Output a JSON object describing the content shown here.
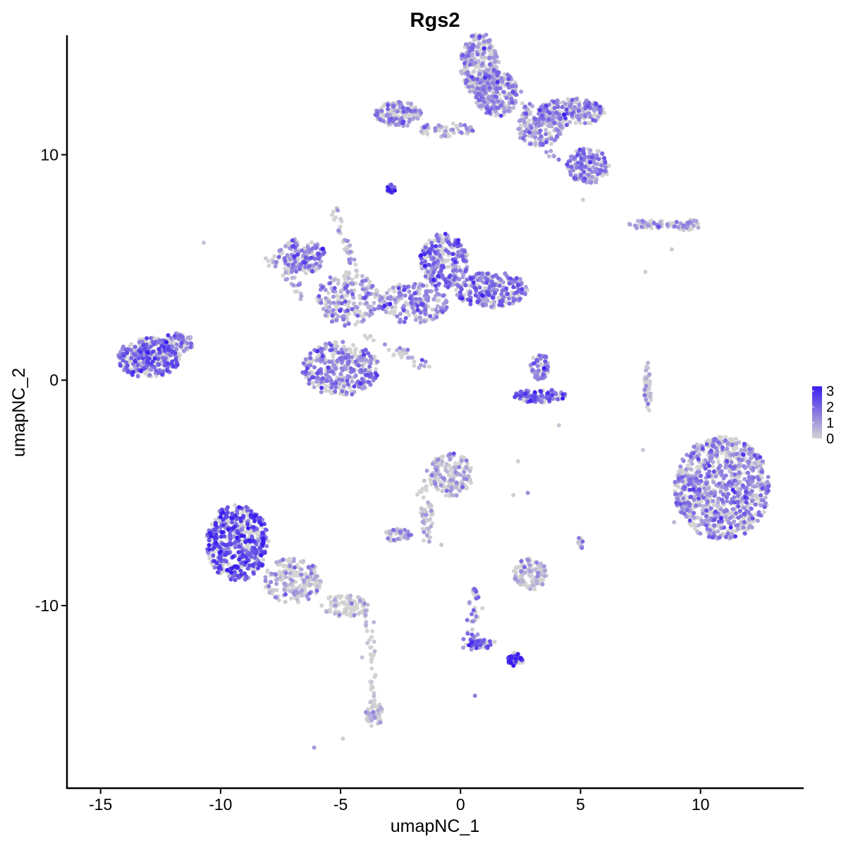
{
  "chart_data": {
    "type": "scatter",
    "title": "Rgs2",
    "xlabel": "umapNC_1",
    "ylabel": "umapNC_2",
    "xlim": [
      -16.4,
      14.3
    ],
    "ylim": [
      -18.1,
      15.3
    ],
    "x_ticks": [
      -15,
      -10,
      -5,
      0,
      5,
      10
    ],
    "x_tick_labels": [
      "-15",
      "-10",
      "-5",
      "0",
      "5",
      "10"
    ],
    "y_ticks": [
      -10,
      0,
      10
    ],
    "y_tick_labels": [
      "-10",
      "0",
      "10"
    ],
    "grid": false,
    "legend": {
      "placement": "right",
      "type": "colorbar",
      "breaks": [
        3,
        2,
        1,
        0
      ],
      "labels": [
        "3",
        "2",
        "1",
        "0"
      ],
      "low_color": "#d3d3d3",
      "high_color": "#3a1cf0",
      "range": [
        0,
        3.3
      ]
    },
    "series": [
      {
        "clusters": [
          {
            "cx": 0.8,
            "cy": 14.0,
            "rx": 0.8,
            "ry": 1.4,
            "n": 280,
            "mean": 0.9
          },
          {
            "cx": 1.5,
            "cy": 12.7,
            "rx": 0.9,
            "ry": 1.0,
            "n": 260,
            "mean": 1.0
          },
          {
            "cx": 4.6,
            "cy": 11.9,
            "rx": 1.4,
            "ry": 0.6,
            "n": 220,
            "mean": 1.2
          },
          {
            "cx": 5.3,
            "cy": 9.5,
            "rx": 0.9,
            "ry": 0.8,
            "n": 170,
            "mean": 1.3
          },
          {
            "cx": 3.3,
            "cy": 11.2,
            "rx": 1.0,
            "ry": 0.8,
            "n": 130,
            "mean": 0.9
          },
          {
            "cx": -2.6,
            "cy": 11.8,
            "rx": 1.0,
            "ry": 0.55,
            "n": 140,
            "mean": 1.1
          },
          {
            "cx": -0.6,
            "cy": 11.1,
            "rx": 1.2,
            "ry": 0.3,
            "n": 60,
            "mean": 0.7
          },
          {
            "cx": -2.9,
            "cy": 8.5,
            "rx": 0.2,
            "ry": 0.2,
            "n": 25,
            "mean": 2.6
          },
          {
            "cx": -6.6,
            "cy": 5.5,
            "rx": 1.0,
            "ry": 0.8,
            "n": 160,
            "mean": 1.5
          },
          {
            "cx": -4.7,
            "cy": 3.6,
            "rx": 1.3,
            "ry": 1.2,
            "n": 200,
            "mean": 1.0
          },
          {
            "cx": -0.7,
            "cy": 5.3,
            "rx": 1.0,
            "ry": 1.2,
            "n": 250,
            "mean": 1.6
          },
          {
            "cx": 1.3,
            "cy": 4.0,
            "rx": 1.5,
            "ry": 0.8,
            "n": 260,
            "mean": 1.6
          },
          {
            "cx": -2.0,
            "cy": 3.4,
            "rx": 1.5,
            "ry": 0.9,
            "n": 200,
            "mean": 1.2
          },
          {
            "cx": -5.0,
            "cy": 0.5,
            "rx": 1.6,
            "ry": 1.2,
            "n": 340,
            "mean": 1.4
          },
          {
            "cx": -13.0,
            "cy": 1.0,
            "rx": 1.3,
            "ry": 0.9,
            "n": 320,
            "mean": 1.7
          },
          {
            "cx": -11.8,
            "cy": 1.6,
            "rx": 0.7,
            "ry": 0.5,
            "n": 70,
            "mean": 1.2
          },
          {
            "cx": 3.3,
            "cy": 0.6,
            "rx": 0.4,
            "ry": 0.6,
            "n": 70,
            "mean": 1.6
          },
          {
            "cx": 3.3,
            "cy": -0.7,
            "rx": 1.1,
            "ry": 0.3,
            "n": 110,
            "mean": 1.8
          },
          {
            "cx": 7.9,
            "cy": 6.9,
            "rx": 0.9,
            "ry": 0.2,
            "n": 50,
            "mean": 0.6
          },
          {
            "cx": 9.4,
            "cy": 6.9,
            "rx": 0.6,
            "ry": 0.25,
            "n": 40,
            "mean": 1.0
          },
          {
            "cx": 7.8,
            "cy": -0.4,
            "rx": 0.15,
            "ry": 1.2,
            "n": 40,
            "mean": 0.3
          },
          {
            "cx": 10.9,
            "cy": -4.8,
            "rx": 2.0,
            "ry": 2.3,
            "n": 900,
            "mean": 1.1
          },
          {
            "cx": -0.4,
            "cy": -4.2,
            "rx": 0.9,
            "ry": 1.0,
            "n": 150,
            "mean": 0.5
          },
          {
            "cx": -1.4,
            "cy": -6.3,
            "rx": 0.3,
            "ry": 1.0,
            "n": 40,
            "mean": 0.4
          },
          {
            "cx": -2.6,
            "cy": -6.9,
            "rx": 0.6,
            "ry": 0.3,
            "n": 50,
            "mean": 0.5
          },
          {
            "cx": -9.3,
            "cy": -7.2,
            "rx": 1.3,
            "ry": 1.7,
            "n": 520,
            "mean": 2.2
          },
          {
            "cx": -7.0,
            "cy": -8.9,
            "rx": 1.2,
            "ry": 1.0,
            "n": 200,
            "mean": 0.4
          },
          {
            "cx": -4.8,
            "cy": -10.0,
            "rx": 1.0,
            "ry": 0.5,
            "n": 80,
            "mean": 0.2
          },
          {
            "cx": -3.6,
            "cy": -14.8,
            "rx": 0.35,
            "ry": 0.6,
            "n": 60,
            "mean": 0.2
          },
          {
            "cx": 2.9,
            "cy": -8.6,
            "rx": 0.7,
            "ry": 0.7,
            "n": 120,
            "mean": 0.15
          },
          {
            "cx": 0.9,
            "cy": -11.7,
            "rx": 0.6,
            "ry": 0.2,
            "n": 40,
            "mean": 1.9
          },
          {
            "cx": 2.3,
            "cy": -12.4,
            "rx": 0.35,
            "ry": 0.3,
            "n": 50,
            "mean": 2.5
          },
          {
            "cx": 5.0,
            "cy": -7.2,
            "rx": 0.1,
            "ry": 0.3,
            "n": 10,
            "mean": 0.9
          }
        ],
        "stalks": [
          {
            "x1": -5.3,
            "y1": 7.5,
            "x2": -4.3,
            "y2": 4.5,
            "n": 40,
            "mean": 0.5
          },
          {
            "x1": -3.8,
            "y1": 1.9,
            "x2": -1.4,
            "y2": 0.6,
            "n": 30,
            "mean": 0.6
          },
          {
            "x1": 0.6,
            "y1": -9.1,
            "x2": 0.4,
            "y2": -12.0,
            "n": 40,
            "mean": 1.4
          },
          {
            "x1": -3.9,
            "y1": -10.2,
            "x2": -3.6,
            "y2": -14.0,
            "n": 30,
            "mean": 0.2
          },
          {
            "x1": -1.7,
            "y1": -5.2,
            "x2": -0.8,
            "y2": -3.6,
            "n": 25,
            "mean": 0.3
          },
          {
            "x1": 2.4,
            "y1": 12.6,
            "x2": 3.9,
            "y2": 9.8,
            "n": 40,
            "mean": 0.9
          },
          {
            "x1": -8.0,
            "y1": 5.6,
            "x2": -6.4,
            "y2": 3.6,
            "n": 30,
            "mean": 1.0
          }
        ],
        "singles": [
          {
            "x": -10.7,
            "y": 6.1,
            "v": 0.3
          },
          {
            "x": 8.8,
            "y": 5.8,
            "v": 0.2
          },
          {
            "x": 7.7,
            "y": 4.8,
            "v": 0.1
          },
          {
            "x": 4.1,
            "y": -2.0,
            "v": 0.2
          },
          {
            "x": 5.1,
            "y": 8.0,
            "v": 0.1
          },
          {
            "x": 8.9,
            "y": -6.3,
            "v": 0.5
          },
          {
            "x": 2.2,
            "y": -5.1,
            "v": 0.1
          },
          {
            "x": 0.6,
            "y": -14.0,
            "v": 1.5
          },
          {
            "x": -6.1,
            "y": -16.3,
            "v": 1.0
          },
          {
            "x": -4.9,
            "y": -15.9,
            "v": 0.1
          },
          {
            "x": -3.6,
            "y": -11.6,
            "v": 0.2
          },
          {
            "x": 7.6,
            "y": -3.1,
            "v": 0.2
          },
          {
            "x": -0.8,
            "y": -7.3,
            "v": 0.2
          },
          {
            "x": -4.1,
            "y": -12.3,
            "v": 0.3
          },
          {
            "x": 2.8,
            "y": -5.0,
            "v": 1.2
          },
          {
            "x": 2.4,
            "y": -3.6,
            "v": 0.1
          }
        ]
      }
    ]
  }
}
